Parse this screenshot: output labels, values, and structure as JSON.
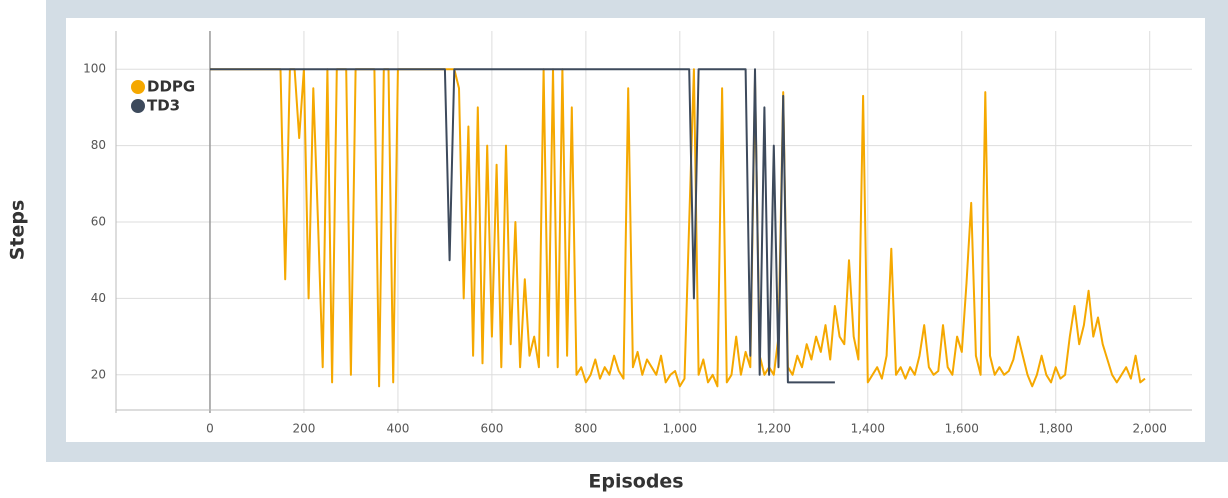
{
  "chart_data": {
    "type": "line",
    "x_label": "Episodes",
    "y_label": "Steps",
    "x": [
      0,
      10,
      20,
      30,
      40,
      50,
      60,
      70,
      80,
      90,
      100,
      110,
      120,
      130,
      140,
      150,
      160,
      170,
      180,
      190,
      200,
      210,
      220,
      230,
      240,
      250,
      260,
      270,
      280,
      290,
      300,
      310,
      320,
      330,
      340,
      350,
      360,
      370,
      380,
      390,
      400,
      410,
      420,
      430,
      440,
      450,
      460,
      470,
      480,
      490,
      500,
      510,
      520,
      530,
      540,
      550,
      560,
      570,
      580,
      590,
      600,
      610,
      620,
      630,
      640,
      650,
      660,
      670,
      680,
      690,
      700,
      710,
      720,
      730,
      740,
      750,
      760,
      770,
      780,
      790,
      800,
      810,
      820,
      830,
      840,
      850,
      860,
      870,
      880,
      890,
      900,
      910,
      920,
      930,
      940,
      950,
      960,
      970,
      980,
      990,
      1000,
      1010,
      1020,
      1030,
      1040,
      1050,
      1060,
      1070,
      1080,
      1090,
      1100,
      1110,
      1120,
      1130,
      1140,
      1150,
      1160,
      1170,
      1180,
      1190,
      1200,
      1210,
      1220,
      1230,
      1240,
      1250,
      1260,
      1270,
      1280,
      1290,
      1300,
      1310,
      1320,
      1330,
      1340,
      1350,
      1360,
      1370,
      1380,
      1390,
      1400,
      1410,
      1420,
      1430,
      1440,
      1450,
      1460,
      1470,
      1480,
      1490,
      1500,
      1510,
      1520,
      1530,
      1540,
      1550,
      1560,
      1570,
      1580,
      1590,
      1600,
      1610,
      1620,
      1630,
      1640,
      1650,
      1660,
      1670,
      1680,
      1690,
      1700,
      1710,
      1720,
      1730,
      1740,
      1750,
      1760,
      1770,
      1780,
      1790,
      1800,
      1810,
      1820,
      1830,
      1840,
      1850,
      1860,
      1870,
      1880,
      1890,
      1900,
      1910,
      1920,
      1930,
      1940,
      1950,
      1960,
      1970,
      1980,
      1990
    ],
    "series": [
      {
        "name": "DDPG",
        "color": "#f5a800",
        "values": [
          100,
          100,
          100,
          100,
          100,
          100,
          100,
          100,
          100,
          100,
          100,
          100,
          100,
          100,
          100,
          100,
          45,
          100,
          100,
          82,
          100,
          40,
          95,
          60,
          22,
          100,
          18,
          100,
          100,
          100,
          20,
          100,
          100,
          100,
          100,
          100,
          17,
          100,
          100,
          18,
          100,
          100,
          100,
          100,
          100,
          100,
          100,
          100,
          100,
          100,
          100,
          100,
          100,
          95,
          40,
          85,
          25,
          90,
          23,
          80,
          30,
          75,
          22,
          80,
          28,
          60,
          22,
          45,
          25,
          30,
          22,
          100,
          25,
          100,
          22,
          100,
          25,
          90,
          20,
          22,
          18,
          20,
          24,
          19,
          22,
          20,
          25,
          21,
          19,
          95,
          22,
          26,
          20,
          24,
          22,
          20,
          25,
          18,
          20,
          21,
          17,
          19,
          60,
          100,
          20,
          24,
          18,
          20,
          17,
          95,
          18,
          20,
          30,
          20,
          26,
          22,
          97,
          25,
          20,
          22,
          20,
          30,
          94,
          22,
          20,
          25,
          22,
          28,
          24,
          30,
          26,
          33,
          24,
          38,
          30,
          28,
          50,
          30,
          24,
          93,
          18,
          20,
          22,
          19,
          25,
          53,
          20,
          22,
          19,
          22,
          20,
          25,
          33,
          22,
          20,
          21,
          33,
          22,
          20,
          30,
          26,
          44,
          65,
          25,
          20,
          94,
          25,
          20,
          22,
          20,
          21,
          24,
          30,
          25,
          20,
          17,
          20,
          25,
          20,
          18,
          22,
          19,
          20,
          30,
          38,
          28,
          33,
          42,
          30,
          35,
          28,
          24,
          20,
          18,
          20,
          22,
          19,
          25,
          18,
          19
        ]
      },
      {
        "name": "TD3",
        "color": "#3d4a5c",
        "values": [
          100,
          100,
          100,
          100,
          100,
          100,
          100,
          100,
          100,
          100,
          100,
          100,
          100,
          100,
          100,
          100,
          100,
          100,
          100,
          100,
          100,
          100,
          100,
          100,
          100,
          100,
          100,
          100,
          100,
          100,
          100,
          100,
          100,
          100,
          100,
          100,
          100,
          100,
          100,
          100,
          100,
          100,
          100,
          100,
          100,
          100,
          100,
          100,
          100,
          100,
          100,
          50,
          100,
          100,
          100,
          100,
          100,
          100,
          100,
          100,
          100,
          100,
          100,
          100,
          100,
          100,
          100,
          100,
          100,
          100,
          100,
          100,
          100,
          100,
          100,
          100,
          100,
          100,
          100,
          100,
          100,
          100,
          100,
          100,
          100,
          100,
          100,
          100,
          100,
          100,
          100,
          100,
          100,
          100,
          100,
          100,
          100,
          100,
          100,
          100,
          100,
          100,
          100,
          40,
          100,
          100,
          100,
          100,
          100,
          100,
          100,
          100,
          100,
          100,
          100,
          25,
          100,
          20,
          90,
          20,
          80,
          22,
          93,
          18,
          18,
          18,
          18,
          18,
          18,
          18,
          18,
          18,
          18,
          18,
          null,
          null,
          null,
          null,
          null,
          null,
          null,
          null,
          null,
          null,
          null,
          null,
          null,
          null,
          null,
          null,
          null,
          null,
          null,
          null,
          null,
          null,
          null,
          null,
          null,
          null,
          null,
          null,
          null,
          null,
          null,
          null,
          null,
          null,
          null,
          null,
          null,
          null,
          null,
          null,
          null,
          null,
          null,
          null,
          null,
          null,
          null,
          null,
          null,
          null,
          null,
          null,
          null,
          null,
          null,
          null,
          null,
          null,
          null,
          null,
          null,
          null,
          null,
          null,
          null,
          null
        ]
      }
    ],
    "xlim": [
      -200,
      2090
    ],
    "xticks": [
      0,
      200,
      400,
      600,
      800,
      {
        "value": 1000,
        "label": "1,000"
      },
      {
        "value": 1200,
        "label": "1,200"
      },
      {
        "value": 1400,
        "label": "1,400"
      },
      {
        "value": 1600,
        "label": "1,600"
      },
      {
        "value": 1800,
        "label": "1,800"
      },
      {
        "value": 2000,
        "label": "2,000"
      }
    ],
    "ylim": [
      10,
      110
    ],
    "yticks": [
      20,
      40,
      60,
      80,
      100
    ],
    "grid": true,
    "legend": "top-left"
  }
}
